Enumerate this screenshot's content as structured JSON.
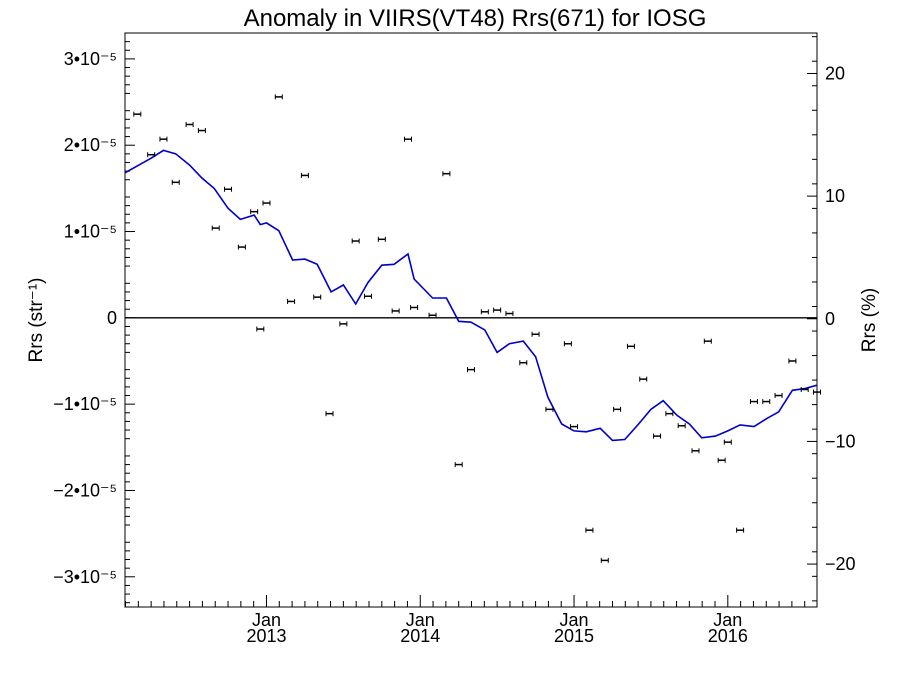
{
  "chart_data": {
    "type": "scatter",
    "title": "Anomaly in VIIRS(VT48) Rrs(671) for IOSG",
    "ylabel": "Rrs (str⁻¹)",
    "ylabel_right": "Rrs (%)",
    "ylim": [
      -3.35e-05,
      3.3e-05
    ],
    "ylim_right": [
      -23.5,
      23.3
    ],
    "xlim": [
      2012.08,
      2016.58
    ],
    "y_ticks": [
      {
        "value": 3e-05,
        "label": "3•10⁻⁵"
      },
      {
        "value": 2e-05,
        "label": "2•10⁻⁵"
      },
      {
        "value": 1e-05,
        "label": "1•10⁻⁵"
      },
      {
        "value": 0,
        "label": "0"
      },
      {
        "value": -1e-05,
        "label": "−1•10⁻⁵"
      },
      {
        "value": -2e-05,
        "label": "−2•10⁻⁵"
      },
      {
        "value": -3e-05,
        "label": "−3•10⁻⁵"
      }
    ],
    "y_right_ticks": [
      {
        "value": 20,
        "label": "20"
      },
      {
        "value": 10,
        "label": "10"
      },
      {
        "value": 0,
        "label": "0"
      },
      {
        "value": -10,
        "label": "−10"
      },
      {
        "value": -20,
        "label": "−20"
      }
    ],
    "x_ticks": [
      {
        "value": 2013.0,
        "month": "Jan",
        "year": "2013"
      },
      {
        "value": 2014.0,
        "month": "Jan",
        "year": "2014"
      },
      {
        "value": 2015.0,
        "month": "Jan",
        "year": "2015"
      },
      {
        "value": 2016.0,
        "month": "Jan",
        "year": "2016"
      }
    ],
    "zero_line": true,
    "points": [
      [
        2012.16,
        2.36e-05
      ],
      [
        2012.25,
        1.89e-05
      ],
      [
        2012.33,
        2.07e-05
      ],
      [
        2012.41,
        1.57e-05
      ],
      [
        2012.5,
        2.24e-05
      ],
      [
        2012.58,
        2.17e-05
      ],
      [
        2012.67,
        1.04e-05
      ],
      [
        2012.75,
        1.49e-05
      ],
      [
        2012.84,
        8.2e-06
      ],
      [
        2012.92,
        1.23e-05
      ],
      [
        2012.96,
        -1.3e-06
      ],
      [
        2013.0,
        1.33e-05
      ],
      [
        2013.08,
        2.56e-05
      ],
      [
        2013.16,
        1.9e-06
      ],
      [
        2013.25,
        1.65e-05
      ],
      [
        2013.33,
        2.4e-06
      ],
      [
        2013.41,
        -1.11e-05
      ],
      [
        2013.5,
        -7e-07
      ],
      [
        2013.58,
        8.9e-06
      ],
      [
        2013.66,
        2.5e-06
      ],
      [
        2013.75,
        9.1e-06
      ],
      [
        2013.84,
        8e-07
      ],
      [
        2013.92,
        2.07e-05
      ],
      [
        2013.96,
        1.2e-06
      ],
      [
        2014.08,
        3e-07
      ],
      [
        2014.17,
        1.67e-05
      ],
      [
        2014.25,
        -1.7e-05
      ],
      [
        2014.33,
        -6e-06
      ],
      [
        2014.42,
        7e-07
      ],
      [
        2014.5,
        9e-07
      ],
      [
        2014.58,
        5e-07
      ],
      [
        2014.67,
        -5.2e-06
      ],
      [
        2014.75,
        -1.9e-06
      ],
      [
        2014.84,
        -1.06e-05
      ],
      [
        2014.96,
        -3e-06
      ],
      [
        2015.0,
        -1.26e-05
      ],
      [
        2015.1,
        -2.46e-05
      ],
      [
        2015.2,
        -2.81e-05
      ],
      [
        2015.28,
        -1.06e-05
      ],
      [
        2015.37,
        -3.3e-06
      ],
      [
        2015.45,
        -7.1e-06
      ],
      [
        2015.54,
        -1.37e-05
      ],
      [
        2015.62,
        -1.11e-05
      ],
      [
        2015.7,
        -1.25e-05
      ],
      [
        2015.79,
        -1.54e-05
      ],
      [
        2015.87,
        -2.7e-06
      ],
      [
        2015.96,
        -1.65e-05
      ],
      [
        2016.0,
        -1.44e-05
      ],
      [
        2016.08,
        -2.46e-05
      ],
      [
        2016.17,
        -9.7e-06
      ],
      [
        2016.25,
        -9.7e-06
      ],
      [
        2016.33,
        -9e-06
      ],
      [
        2016.42,
        -5e-06
      ],
      [
        2016.5,
        -8.3e-06
      ],
      [
        2016.58,
        -8.6e-06
      ]
    ],
    "trend_color": "#0000cc",
    "trend": [
      [
        2012.08,
        1.68e-05
      ],
      [
        2012.16,
        1.76e-05
      ],
      [
        2012.25,
        1.85e-05
      ],
      [
        2012.33,
        1.94e-05
      ],
      [
        2012.41,
        1.9e-05
      ],
      [
        2012.5,
        1.77e-05
      ],
      [
        2012.58,
        1.62e-05
      ],
      [
        2012.66,
        1.5e-05
      ],
      [
        2012.75,
        1.27e-05
      ],
      [
        2012.83,
        1.14e-05
      ],
      [
        2012.92,
        1.19e-05
      ],
      [
        2012.96,
        1.08e-05
      ],
      [
        2013.0,
        1.1e-05
      ],
      [
        2013.08,
        1.01e-05
      ],
      [
        2013.17,
        6.7e-06
      ],
      [
        2013.25,
        6.8e-06
      ],
      [
        2013.33,
        6.2e-06
      ],
      [
        2013.42,
        3e-06
      ],
      [
        2013.5,
        3.8e-06
      ],
      [
        2013.58,
        1.6e-06
      ],
      [
        2013.66,
        4.1e-06
      ],
      [
        2013.75,
        6.1e-06
      ],
      [
        2013.83,
        6.2e-06
      ],
      [
        2013.92,
        7.4e-06
      ],
      [
        2013.96,
        4.5e-06
      ],
      [
        2014.08,
        2.3e-06
      ],
      [
        2014.17,
        2.3e-06
      ],
      [
        2014.25,
        -4e-07
      ],
      [
        2014.33,
        -5e-07
      ],
      [
        2014.42,
        -1.4e-06
      ],
      [
        2014.5,
        -4e-06
      ],
      [
        2014.58,
        -3e-06
      ],
      [
        2014.67,
        -2.7e-06
      ],
      [
        2014.75,
        -4.5e-06
      ],
      [
        2014.83,
        -9.2e-06
      ],
      [
        2014.92,
        -1.23e-05
      ],
      [
        2015.0,
        -1.31e-05
      ],
      [
        2015.08,
        -1.32e-05
      ],
      [
        2015.17,
        -1.28e-05
      ],
      [
        2015.25,
        -1.42e-05
      ],
      [
        2015.33,
        -1.41e-05
      ],
      [
        2015.42,
        -1.23e-05
      ],
      [
        2015.5,
        -1.06e-05
      ],
      [
        2015.58,
        -9.6e-06
      ],
      [
        2015.67,
        -1.13e-05
      ],
      [
        2015.75,
        -1.23e-05
      ],
      [
        2015.83,
        -1.39e-05
      ],
      [
        2015.92,
        -1.37e-05
      ],
      [
        2016.0,
        -1.31e-05
      ],
      [
        2016.08,
        -1.24e-05
      ],
      [
        2016.17,
        -1.26e-05
      ],
      [
        2016.25,
        -1.17e-05
      ],
      [
        2016.33,
        -1.09e-05
      ],
      [
        2016.42,
        -8.4e-06
      ],
      [
        2016.5,
        -8.2e-06
      ],
      [
        2016.58,
        -7.8e-06
      ]
    ],
    "grid": false,
    "legend": "none"
  }
}
